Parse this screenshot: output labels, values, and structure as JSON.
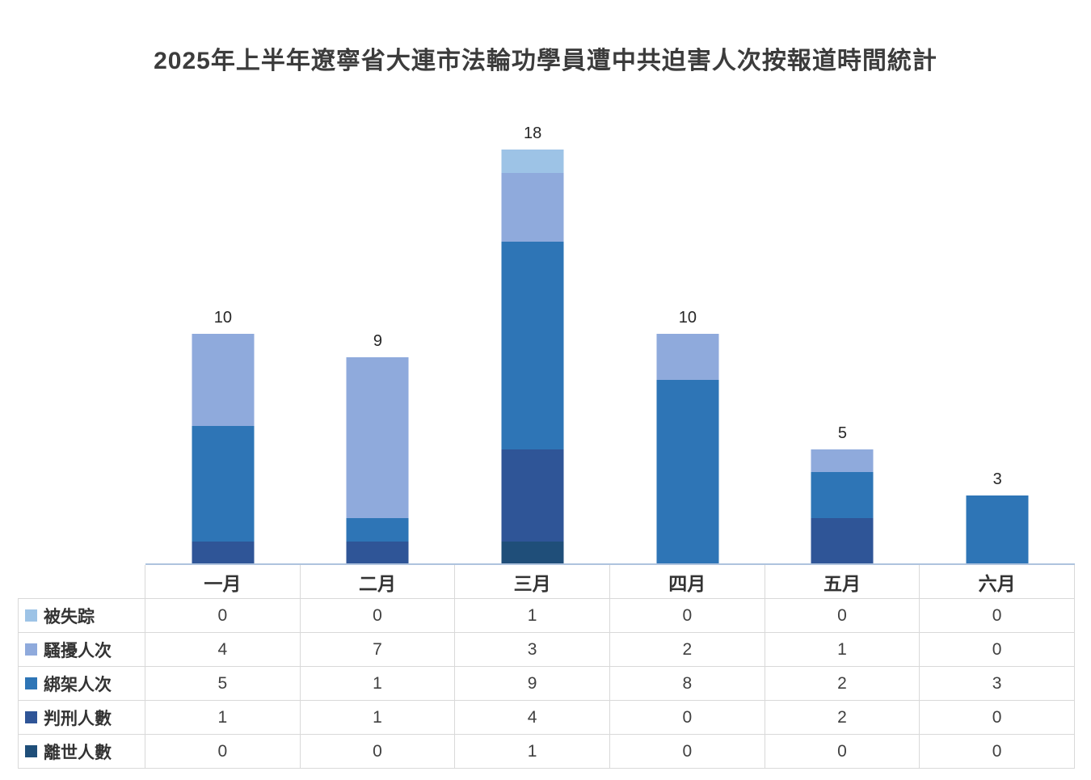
{
  "title": "2025年上半年遼寧省大連市法輪功學員遭中共迫害人次按報道時間統計",
  "chart_data": {
    "type": "bar",
    "stacked": true,
    "title": "2025年上半年遼寧省大連市法輪功學員遭中共迫害人次按報道時間統計",
    "categories": [
      "一月",
      "二月",
      "三月",
      "四月",
      "五月",
      "六月"
    ],
    "series": [
      {
        "name": "被失踪",
        "color": "#9dc3e6",
        "values": [
          0,
          0,
          1,
          0,
          0,
          0
        ]
      },
      {
        "name": "騷擾人次",
        "color": "#8faadc",
        "values": [
          4,
          7,
          3,
          2,
          1,
          0
        ]
      },
      {
        "name": "綁架人次",
        "color": "#2e75b6",
        "values": [
          5,
          1,
          9,
          8,
          2,
          3
        ]
      },
      {
        "name": "判刑人數",
        "color": "#2f5597",
        "values": [
          1,
          1,
          4,
          0,
          2,
          0
        ]
      },
      {
        "name": "離世人數",
        "color": "#1f4e79",
        "values": [
          0,
          0,
          1,
          0,
          0,
          0
        ]
      }
    ],
    "totals": [
      10,
      9,
      18,
      10,
      5,
      3
    ],
    "stack_order_bottom_to_top": [
      "離世人數",
      "判刑人數",
      "綁架人次",
      "騷擾人次",
      "被失踪"
    ],
    "ylim": [
      0,
      18
    ],
    "grid": false,
    "legend_position": "table-rows-left",
    "data_labels": "total-above-bar"
  },
  "colors": {
    "baseline": "#aec3de",
    "table_border": "#d9d9d9",
    "title_text": "#3c3c3c",
    "body_text": "#404040"
  }
}
